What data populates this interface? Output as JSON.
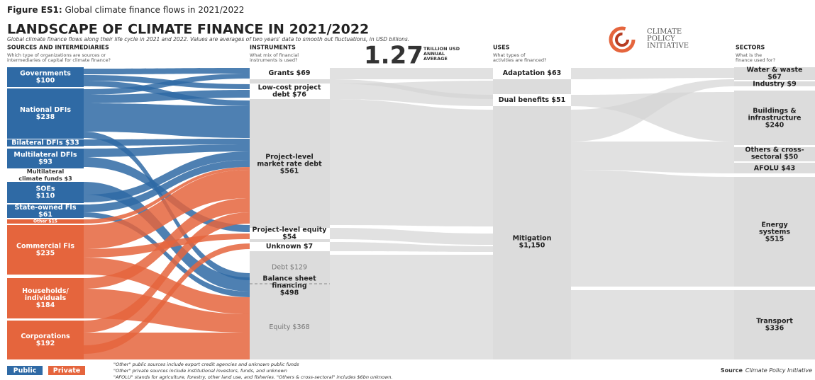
{
  "figure_label": "Figure ES1:",
  "figure_caption": "Global climate finance flows in 2021/2022",
  "title": "LANDSCAPE OF CLIMATE FINANCE IN 2021/2022",
  "subtitle": "Global climate finance flows along their life cycle in 2021 and 2022. Values are averages of two years' data to smooth out fluctuations, in USD billions.",
  "total": {
    "value": "1.27",
    "lines": [
      "TRILLION USD",
      "ANNUAL",
      "AVERAGE"
    ]
  },
  "logo": [
    "CLIMATE",
    "POLICY",
    "INITIATIVE"
  ],
  "columns": [
    {
      "heading": "SOURCES AND INTERMEDIARIES",
      "question": [
        "Which type of organizations are sources or",
        "intermediaries of capital for climate finance?"
      ]
    },
    {
      "heading": "INSTRUMENTS",
      "question": [
        "What mix of financial",
        "instruments is used?"
      ]
    },
    {
      "heading": "USES",
      "question": [
        "What types of",
        "activities are financed?"
      ]
    },
    {
      "heading": "SECTORS",
      "question": [
        "What is the",
        "finance used for?"
      ]
    }
  ],
  "legend": [
    {
      "label": "Public",
      "color": "#2f6aa5"
    },
    {
      "label": "Private",
      "color": "#e5653d"
    }
  ],
  "sources": [
    {
      "lines": [
        "Governments",
        "$100"
      ],
      "group": "Public"
    },
    {
      "lines": [
        "National DFIs",
        "$238"
      ],
      "group": "Public"
    },
    {
      "lines": [
        "Bilateral DFIs $33"
      ],
      "group": "Public"
    },
    {
      "lines": [
        "Multilateral DFIs",
        "$93"
      ],
      "group": "Public"
    },
    {
      "lines": [
        "Multilateral",
        "climate funds $3"
      ],
      "group": "Public"
    },
    {
      "lines": [
        "SOEs",
        "$110"
      ],
      "group": "Public"
    },
    {
      "lines": [
        "State-owned FIs",
        "$61"
      ],
      "group": "Public"
    },
    {
      "lines": [
        "Other $15"
      ],
      "group": "Private"
    },
    {
      "lines": [
        "Commercial FIs",
        "$235"
      ],
      "group": "Private"
    },
    {
      "lines": [
        "Households/",
        "individuals",
        "$184"
      ],
      "group": "Private"
    },
    {
      "lines": [
        "Corporations",
        "$192"
      ],
      "group": "Private"
    }
  ],
  "instruments": [
    {
      "lines": [
        "Grants $69"
      ]
    },
    {
      "lines": [
        "Low-cost project",
        "debt $76"
      ]
    },
    {
      "lines": [
        "Project-level",
        "market rate debt",
        "$561"
      ]
    },
    {
      "lines": [
        "Project-level equity",
        "$54"
      ]
    },
    {
      "lines": [
        "Unknown $7"
      ]
    },
    {
      "lines": [
        "Debt $129"
      ]
    },
    {
      "lines": [
        "Balance sheet",
        "financing",
        "$498"
      ]
    },
    {
      "lines": [
        "Equity $368"
      ]
    }
  ],
  "uses": [
    {
      "lines": [
        "Adaptation $63"
      ]
    },
    {
      "lines": [
        "Dual benefits $51"
      ]
    },
    {
      "lines": [
        "Mitigation",
        "$1,150"
      ]
    }
  ],
  "sectors": [
    {
      "lines": [
        "Water & waste",
        "$67"
      ]
    },
    {
      "lines": [
        "Industry $9"
      ]
    },
    {
      "lines": [
        "Buildings &",
        "infrastructure",
        "$240"
      ]
    },
    {
      "lines": [
        "Others & cross-",
        "sectoral $50"
      ]
    },
    {
      "lines": [
        "AFOLU $43"
      ]
    },
    {
      "lines": [
        "Energy",
        "systems",
        "$515"
      ]
    },
    {
      "lines": [
        "Transport",
        "$336"
      ]
    }
  ],
  "notes": [
    "\"Other\" public sources include export credit agencies and unknown public funds",
    "\"Other\" private sources include institutional investors, funds, and unknown",
    "\"AFOLU\" stands for agriculture, forestry, other land use, and fisheries. \"Others & cross-sectoral\" includes $6bn unknown."
  ],
  "source_label": "Source",
  "source_text": "Climate Policy Initiative"
}
